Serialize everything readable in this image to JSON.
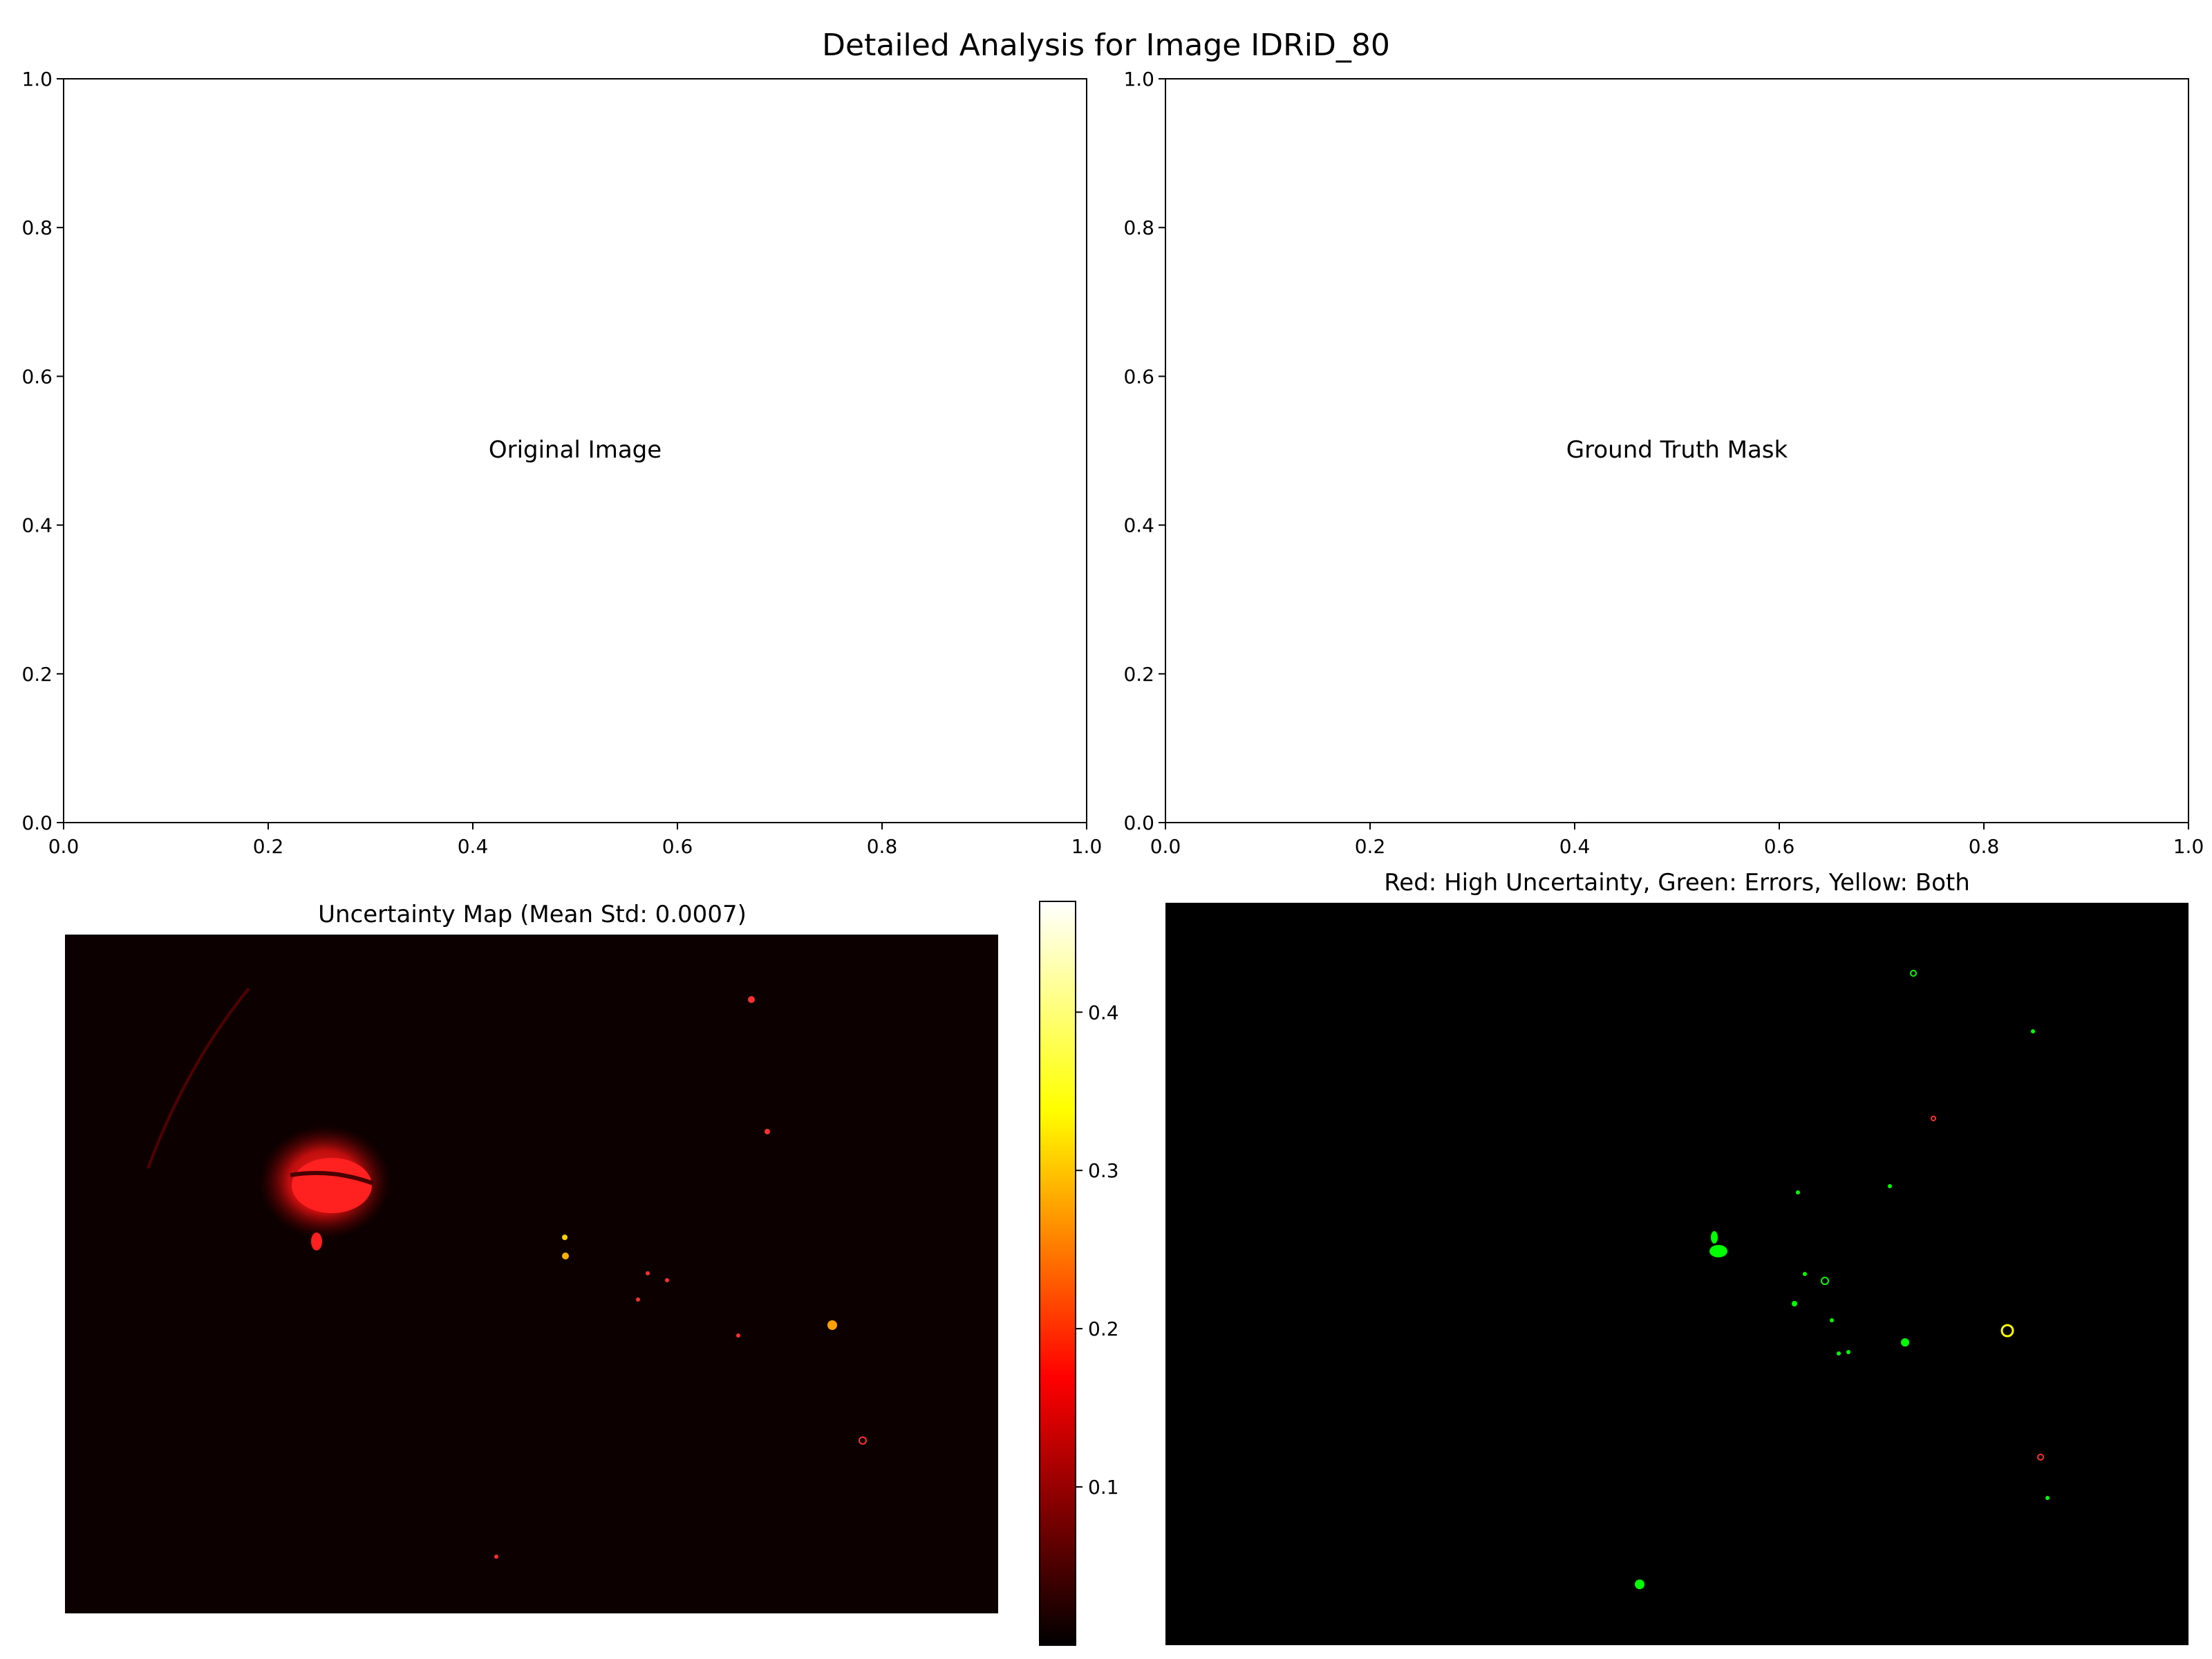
{
  "figure": {
    "title": "Detailed Analysis for Image IDRiD_80"
  },
  "chart_data": [
    {
      "type": "placeholder",
      "panel": "top-left",
      "center_text": "Original Image",
      "xlim": [
        0.0,
        1.0
      ],
      "ylim": [
        0.0,
        1.0
      ],
      "xticks": [
        "0.0",
        "0.2",
        "0.4",
        "0.6",
        "0.8",
        "1.0"
      ],
      "yticks": [
        "0.0",
        "0.2",
        "0.4",
        "0.6",
        "0.8",
        "1.0"
      ]
    },
    {
      "type": "placeholder",
      "panel": "top-right",
      "center_text": "Ground Truth Mask",
      "xlim": [
        0.0,
        1.0
      ],
      "ylim": [
        0.0,
        1.0
      ],
      "xticks": [
        "0.0",
        "0.2",
        "0.4",
        "0.6",
        "0.8",
        "1.0"
      ],
      "yticks": [
        "0.0",
        "0.2",
        "0.4",
        "0.6",
        "0.8",
        "1.0"
      ]
    },
    {
      "type": "heatmap",
      "panel": "bottom-left",
      "title": "Uncertainty Map (Mean Std: 0.0007)",
      "colormap": "hot",
      "colorbar": {
        "vmin": 0.0,
        "vmax": 0.47,
        "ticks": [
          0.1,
          0.2,
          0.3,
          0.4
        ],
        "tick_labels": [
          "0.1",
          "0.2",
          "0.3",
          "0.4"
        ]
      },
      "colors": {
        "background": "#0d0000",
        "high": "#ff2020",
        "peak": "#ffd000"
      }
    },
    {
      "type": "heatmap",
      "panel": "bottom-right",
      "title": "Red: High Uncertainty, Green: Errors, Yellow: Both",
      "colors": {
        "background": "#000000",
        "uncertainty": "#ff0000",
        "error": "#00ff00",
        "both": "#ffff00"
      }
    }
  ]
}
